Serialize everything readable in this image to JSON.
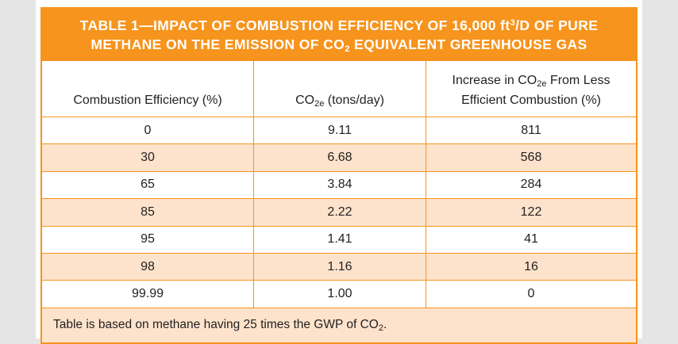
{
  "title": {
    "line1_part1": "TABLE 1—IMPACT OF COMBUSTION EFFICIENCY OF 16,000 ft",
    "line1_sup": "3",
    "line1_part2": "/D OF PURE",
    "line2_part1": "METHANE ON THE EMISSION OF CO",
    "line2_sub": "2",
    "line2_part2": " EQUIVALENT GREENHOUSE GAS"
  },
  "headers": {
    "col1": "Combustion Efficiency (%)",
    "col2_pre": "CO",
    "col2_sub": "2e",
    "col2_post": " (tons/day)",
    "col3_pre": "Increase in CO",
    "col3_sub": "2e",
    "col3_line1_post": " From Less",
    "col3_line2": "Efficient Combustion (%)"
  },
  "rows": [
    {
      "efficiency": "0",
      "co2e": "9.11",
      "increase": "811"
    },
    {
      "efficiency": "30",
      "co2e": "6.68",
      "increase": "568"
    },
    {
      "efficiency": "65",
      "co2e": "3.84",
      "increase": "284"
    },
    {
      "efficiency": "85",
      "co2e": "2.22",
      "increase": "122"
    },
    {
      "efficiency": "95",
      "co2e": "1.41",
      "increase": "41"
    },
    {
      "efficiency": "98",
      "co2e": "1.16",
      "increase": "16"
    },
    {
      "efficiency": "99.99",
      "co2e": "1.00",
      "increase": "0"
    }
  ],
  "footnote": {
    "pre": "Table is based on methane having 25 times the GWP of CO",
    "sub": "2",
    "post": "."
  },
  "colors": {
    "accent": "#f7941d",
    "row_tint": "#fde3cc",
    "text": "#231f20",
    "background": "#e5e5e5"
  }
}
